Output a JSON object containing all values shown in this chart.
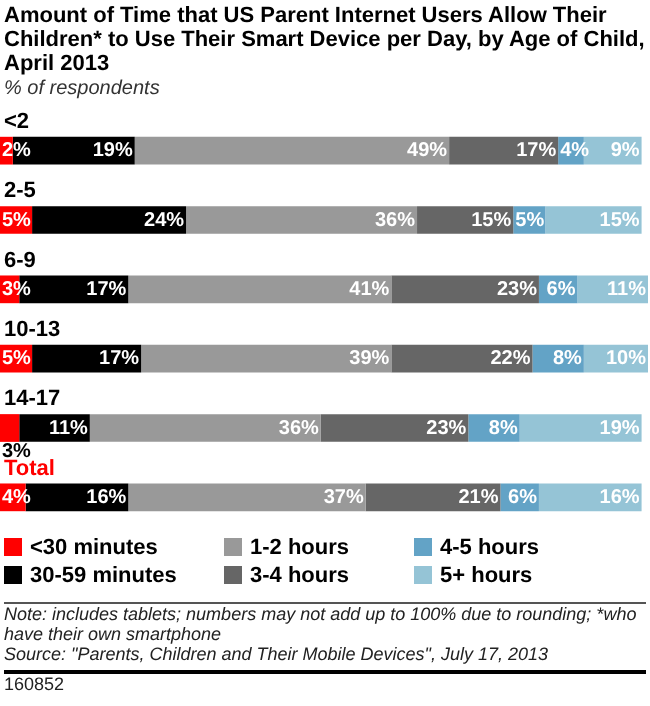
{
  "chart_data": {
    "type": "bar",
    "orientation": "horizontal",
    "stacked": true,
    "title": "Amount of Time that US Parent Internet Users Allow Their Children* to Use Their Smart Device per Day, by Age of Child, April 2013",
    "subtitle": "% of respondents",
    "categories": [
      "<2",
      "2-5",
      "6-9",
      "10-13",
      "14-17",
      "Total"
    ],
    "series": [
      {
        "name": "<30 minutes",
        "color": "#ff0000",
        "values": [
          2,
          5,
          3,
          5,
          3,
          4
        ],
        "value_labels": [
          "2%",
          "5%",
          "3%",
          "5%",
          "3%",
          "4%"
        ]
      },
      {
        "name": "30-59 minutes",
        "color": "#000000",
        "values": [
          19,
          24,
          17,
          17,
          11,
          16
        ],
        "value_labels": [
          "19%",
          "24%",
          "17%",
          "17%",
          "11%",
          "16%"
        ]
      },
      {
        "name": "1-2 hours",
        "color": "#999999",
        "values": [
          49,
          36,
          41,
          39,
          36,
          37
        ],
        "value_labels": [
          "49%",
          "36%",
          "41%",
          "39%",
          "36%",
          "37%"
        ]
      },
      {
        "name": "3-4 hours",
        "color": "#666666",
        "values": [
          17,
          15,
          23,
          22,
          23,
          21
        ],
        "value_labels": [
          "17%",
          "15%",
          "23%",
          "22%",
          "23%",
          "21%"
        ]
      },
      {
        "name": "4-5 hours",
        "color": "#63a3c6",
        "values": [
          4,
          5,
          6,
          8,
          8,
          6
        ],
        "value_labels": [
          "4%",
          "5%",
          "6%",
          "8%",
          "8%",
          "6%"
        ]
      },
      {
        "name": "5+ hours",
        "color": "#95c4d6",
        "values": [
          9,
          15,
          11,
          10,
          19,
          16
        ],
        "value_labels": [
          "9%",
          "15%",
          "11%",
          "10%",
          "19%",
          "16%"
        ]
      }
    ],
    "legend": "bottom",
    "annotations": [
      "Note: includes tablets; numbers may not add up to 100% due to rounding; *who have their own smartphone",
      "Source: \"Parents, Children and Their Mobile Devices\", July 17, 2013",
      "160852"
    ]
  }
}
